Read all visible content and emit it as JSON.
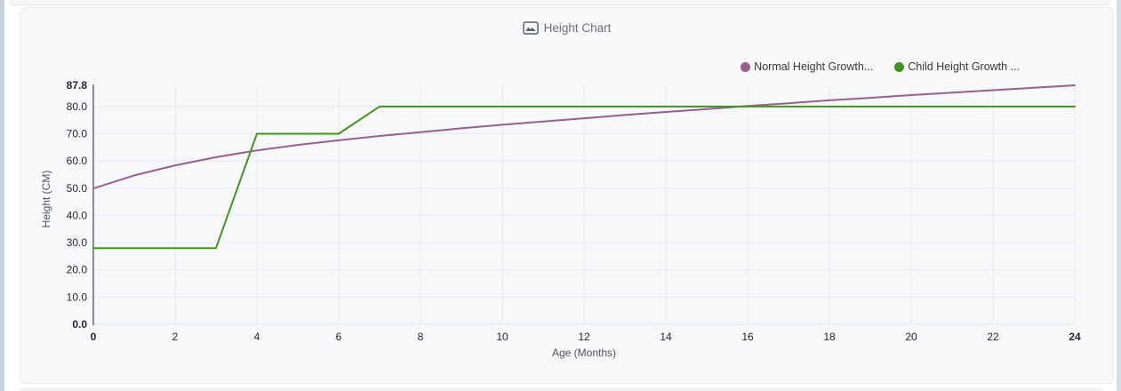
{
  "card": {
    "title": "Height Chart",
    "title_icon": "area-chart-icon"
  },
  "chart_data": {
    "type": "line",
    "title": "Height Chart",
    "xlabel": "Age (Months)",
    "ylabel": "Height (CM)",
    "xlim": [
      0,
      24
    ],
    "ylim": [
      0,
      87.8
    ],
    "grid": true,
    "legend_position": "top-right",
    "x": [
      0,
      1,
      2,
      3,
      4,
      5,
      6,
      7,
      8,
      9,
      10,
      11,
      12,
      13,
      14,
      15,
      16,
      17,
      18,
      19,
      20,
      21,
      22,
      23,
      24
    ],
    "x_tick_values": [
      0,
      2,
      4,
      6,
      8,
      10,
      12,
      14,
      16,
      18,
      20,
      22,
      24
    ],
    "x_tick_labels": [
      "0",
      "2",
      "4",
      "6",
      "8",
      "10",
      "12",
      "14",
      "16",
      "18",
      "20",
      "22",
      "24"
    ],
    "y_tick_values": [
      0,
      10,
      20,
      30,
      40,
      50,
      60,
      70,
      80,
      87.8
    ],
    "y_tick_labels": [
      "0.0",
      "10.0",
      "20.0",
      "30.0",
      "40.0",
      "50.0",
      "60.0",
      "70.0",
      "80.0",
      "87.8"
    ],
    "series": [
      {
        "name": "Normal Height Growth...",
        "color": "#96608d",
        "values": [
          49.9,
          54.7,
          58.4,
          61.4,
          63.9,
          65.9,
          67.6,
          69.2,
          70.6,
          72.0,
          73.3,
          74.5,
          75.7,
          76.9,
          78.0,
          79.1,
          80.2,
          81.2,
          82.3,
          83.2,
          84.2,
          85.1,
          86.0,
          86.9,
          87.8
        ]
      },
      {
        "name": "Child Height Growth ...",
        "color": "#469123",
        "values": [
          28,
          28,
          28,
          28,
          70,
          70,
          70,
          80,
          80,
          80,
          80,
          80,
          80,
          80,
          80,
          80,
          80,
          80,
          80,
          80,
          80,
          80,
          80,
          80,
          80
        ]
      }
    ]
  }
}
